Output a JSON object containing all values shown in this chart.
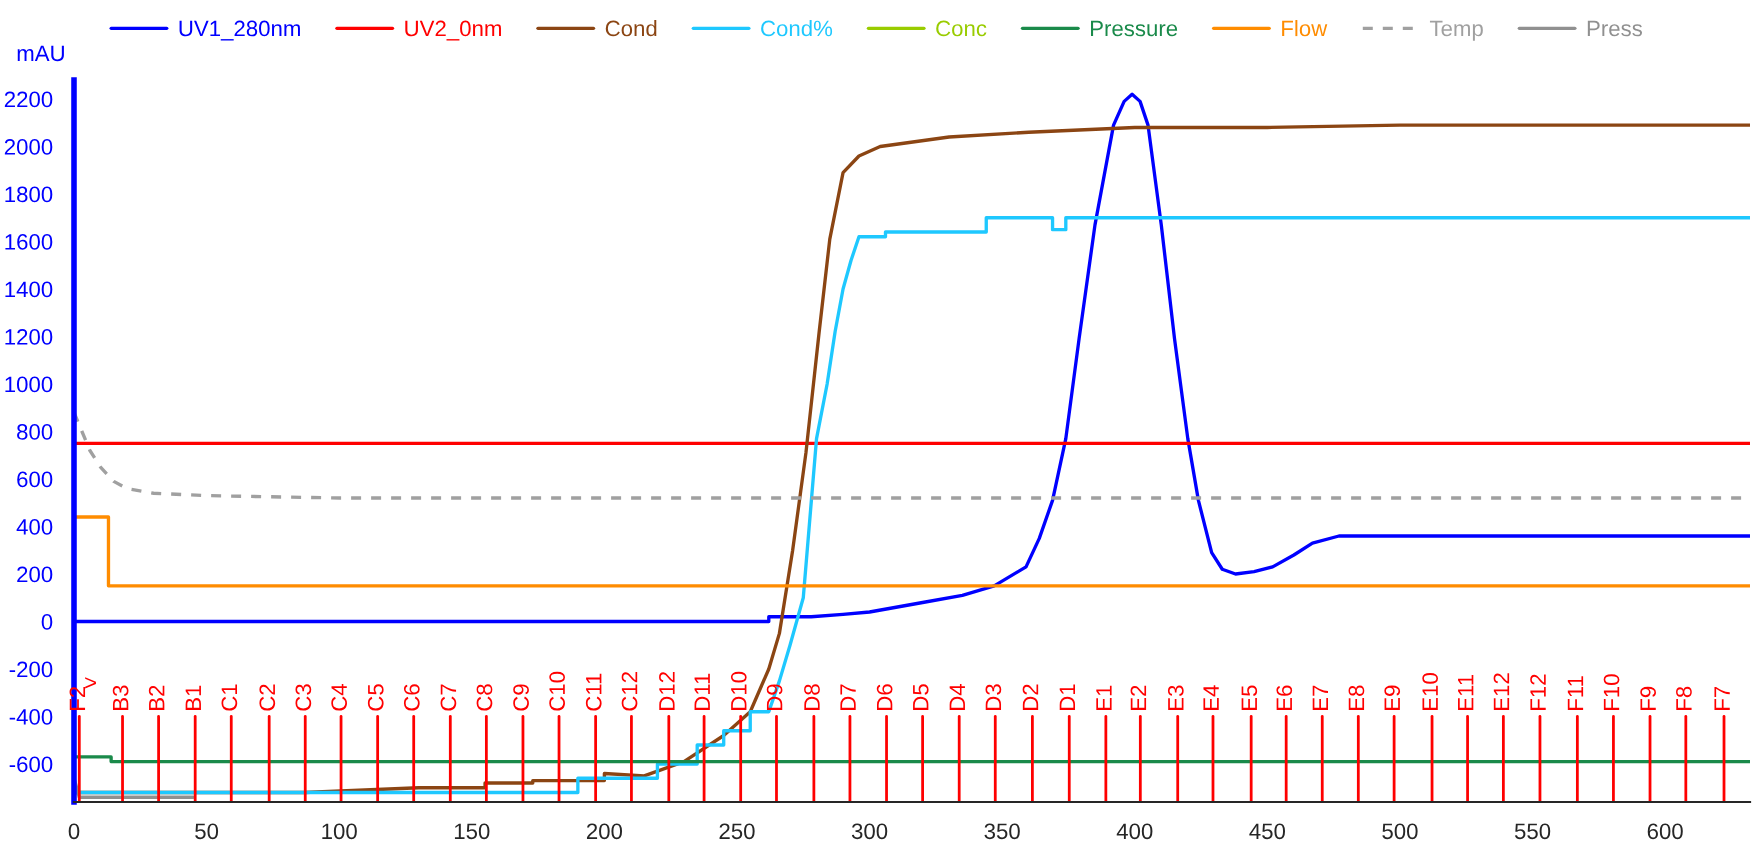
{
  "chart_data": {
    "type": "line",
    "ylabel": "mAU",
    "xlim": [
      0,
      632
    ],
    "xticks": [
      0,
      50,
      100,
      150,
      200,
      250,
      300,
      350,
      400,
      450,
      500,
      550,
      600
    ],
    "ylim": [
      -760,
      2280
    ],
    "yticks": [
      -600,
      -400,
      -200,
      0,
      200,
      400,
      600,
      800,
      1000,
      1200,
      1400,
      1600,
      1800,
      2000,
      2200
    ],
    "legend": "top",
    "grid": false,
    "series": [
      {
        "name": "UV1_280nm",
        "color": "#0000ff",
        "x": [
          0,
          262,
          262,
          278,
          290,
          300,
          320,
          335,
          347,
          359,
          364,
          369,
          374,
          379,
          385,
          392,
          396,
          399,
          402,
          405,
          410,
          415,
          420,
          424,
          429,
          433,
          438,
          445,
          452,
          460,
          467,
          477,
          485,
          632
        ],
        "values": [
          0,
          0,
          20,
          20,
          30,
          40,
          80,
          110,
          150,
          230,
          350,
          510,
          770,
          1190,
          1670,
          2090,
          2190,
          2220,
          2190,
          2090,
          1670,
          1190,
          770,
          510,
          290,
          220,
          200,
          210,
          230,
          280,
          330,
          360,
          360,
          360
        ]
      },
      {
        "name": "UV2_0nm",
        "color": "#ff0000",
        "x": [
          0,
          632
        ],
        "values": [
          750,
          750
        ]
      },
      {
        "name": "Cond",
        "color": "#8b4513",
        "x": [
          0,
          87,
          130,
          155,
          155,
          173,
          173,
          200,
          200,
          215,
          230,
          245,
          255,
          262,
          266,
          271,
          276,
          281,
          285,
          290,
          296,
          304,
          330,
          360,
          400,
          450,
          500,
          550,
          632
        ],
        "values": [
          -720,
          -720,
          -700,
          -700,
          -680,
          -680,
          -670,
          -670,
          -640,
          -650,
          -590,
          -480,
          -380,
          -200,
          -50,
          300,
          710,
          1220,
          1610,
          1890,
          1960,
          2000,
          2040,
          2060,
          2080,
          2080,
          2090,
          2090,
          2090
        ]
      },
      {
        "name": "Cond%",
        "color": "#1ec8ff",
        "x": [
          0,
          190,
          190,
          220,
          220,
          235,
          235,
          245,
          245,
          255,
          255,
          262,
          266,
          270,
          275,
          280,
          284,
          287,
          290,
          293,
          296,
          306,
          306,
          344,
          344,
          369,
          369,
          374,
          374,
          632
        ],
        "values": [
          -720,
          -720,
          -660,
          -660,
          -600,
          -600,
          -520,
          -520,
          -460,
          -460,
          -380,
          -380,
          -250,
          -100,
          100,
          770,
          1000,
          1220,
          1400,
          1520,
          1620,
          1620,
          1640,
          1640,
          1700,
          1700,
          1650,
          1650,
          1700,
          1700
        ]
      },
      {
        "name": "Conc",
        "color": "#99cc00"
      },
      {
        "name": "Pressure",
        "color": "#1a8a4a",
        "x": [
          0,
          14,
          14,
          632
        ],
        "values": [
          -570,
          -570,
          -590,
          -590
        ]
      },
      {
        "name": "Flow",
        "color": "#ff8c00",
        "x": [
          0,
          13,
          13,
          632
        ],
        "values": [
          440,
          440,
          150,
          150
        ]
      },
      {
        "name": "Temp",
        "color": "#a0a0a0",
        "line_style": "dashed",
        "x": [
          0,
          3,
          6,
          10,
          15,
          20,
          30,
          50,
          100,
          150,
          632
        ],
        "values": [
          880,
          800,
          720,
          650,
          590,
          560,
          540,
          530,
          520,
          520,
          520
        ]
      },
      {
        "name": "Press",
        "color": "#909090",
        "x": [
          0,
          2,
          45
        ],
        "values": [
          -660,
          -740,
          -740
        ]
      }
    ],
    "ref_lines": [
      {
        "axis": "x",
        "value": 2,
        "label": "F2",
        "color": "#ff0000"
      },
      {
        "axis": "x",
        "value": 18.3,
        "label": "B3",
        "color": "#ff0000"
      },
      {
        "axis": "x",
        "value": 31.9,
        "label": "B2",
        "color": "#ff0000"
      },
      {
        "axis": "x",
        "value": 45.7,
        "label": "B1",
        "color": "#ff0000"
      },
      {
        "axis": "x",
        "value": 59.3,
        "label": "C1",
        "color": "#ff0000"
      },
      {
        "axis": "x",
        "value": 73.6,
        "label": "C2",
        "color": "#ff0000"
      },
      {
        "axis": "x",
        "value": 87.2,
        "label": "C3",
        "color": "#ff0000"
      },
      {
        "axis": "x",
        "value": 100.7,
        "label": "C4",
        "color": "#ff0000"
      },
      {
        "axis": "x",
        "value": 114.5,
        "label": "C5",
        "color": "#ff0000"
      },
      {
        "axis": "x",
        "value": 128.1,
        "label": "C6",
        "color": "#ff0000"
      },
      {
        "axis": "x",
        "value": 141.9,
        "label": "C7",
        "color": "#ff0000"
      },
      {
        "axis": "x",
        "value": 155.5,
        "label": "C8",
        "color": "#ff0000"
      },
      {
        "axis": "x",
        "value": 169.3,
        "label": "C9",
        "color": "#ff0000"
      },
      {
        "axis": "x",
        "value": 182.9,
        "label": "C10",
        "color": "#ff0000"
      },
      {
        "axis": "x",
        "value": 196.7,
        "label": "C11",
        "color": "#ff0000"
      },
      {
        "axis": "x",
        "value": 210.2,
        "label": "C12",
        "color": "#ff0000"
      },
      {
        "axis": "x",
        "value": 224.3,
        "label": "D12",
        "color": "#ff0000"
      },
      {
        "axis": "x",
        "value": 237.6,
        "label": "D11",
        "color": "#ff0000"
      },
      {
        "axis": "x",
        "value": 251.4,
        "label": "D10",
        "color": "#ff0000"
      },
      {
        "axis": "x",
        "value": 264.9,
        "label": "D9",
        "color": "#ff0000"
      },
      {
        "axis": "x",
        "value": 279.0,
        "label": "D8",
        "color": "#ff0000"
      },
      {
        "axis": "x",
        "value": 292.6,
        "label": "D7",
        "color": "#ff0000"
      },
      {
        "axis": "x",
        "value": 306.4,
        "label": "D6",
        "color": "#ff0000"
      },
      {
        "axis": "x",
        "value": 320.0,
        "label": "D5",
        "color": "#ff0000"
      },
      {
        "axis": "x",
        "value": 333.8,
        "label": "D4",
        "color": "#ff0000"
      },
      {
        "axis": "x",
        "value": 347.4,
        "label": "D3",
        "color": "#ff0000"
      },
      {
        "axis": "x",
        "value": 361.4,
        "label": "D2",
        "color": "#ff0000"
      },
      {
        "axis": "x",
        "value": 375.3,
        "label": "D1",
        "color": "#ff0000"
      },
      {
        "axis": "x",
        "value": 389.1,
        "label": "E1",
        "color": "#ff0000"
      },
      {
        "axis": "x",
        "value": 402.1,
        "label": "E2",
        "color": "#ff0000"
      },
      {
        "axis": "x",
        "value": 416.2,
        "label": "E3",
        "color": "#ff0000"
      },
      {
        "axis": "x",
        "value": 429.5,
        "label": "E4",
        "color": "#ff0000"
      },
      {
        "axis": "x",
        "value": 443.9,
        "label": "E5",
        "color": "#ff0000"
      },
      {
        "axis": "x",
        "value": 457.1,
        "label": "E6",
        "color": "#ff0000"
      },
      {
        "axis": "x",
        "value": 470.7,
        "label": "E7",
        "color": "#ff0000"
      },
      {
        "axis": "x",
        "value": 484.3,
        "label": "E8",
        "color": "#ff0000"
      },
      {
        "axis": "x",
        "value": 497.8,
        "label": "E9",
        "color": "#ff0000"
      },
      {
        "axis": "x",
        "value": 512.1,
        "label": "E10",
        "color": "#ff0000"
      },
      {
        "axis": "x",
        "value": 525.5,
        "label": "E11",
        "color": "#ff0000"
      },
      {
        "axis": "x",
        "value": 539.0,
        "label": "E12",
        "color": "#ff0000"
      },
      {
        "axis": "x",
        "value": 552.8,
        "label": "F12",
        "color": "#ff0000"
      },
      {
        "axis": "x",
        "value": 566.9,
        "label": "F11",
        "color": "#ff0000"
      },
      {
        "axis": "x",
        "value": 580.5,
        "label": "F10",
        "color": "#ff0000"
      },
      {
        "axis": "x",
        "value": 594.3,
        "label": "F9",
        "color": "#ff0000"
      },
      {
        "axis": "x",
        "value": 607.8,
        "label": "F8",
        "color": "#ff0000"
      },
      {
        "axis": "x",
        "value": 622.2,
        "label": "F7",
        "color": "#ff0000"
      }
    ],
    "annotations": [
      ">"
    ]
  }
}
